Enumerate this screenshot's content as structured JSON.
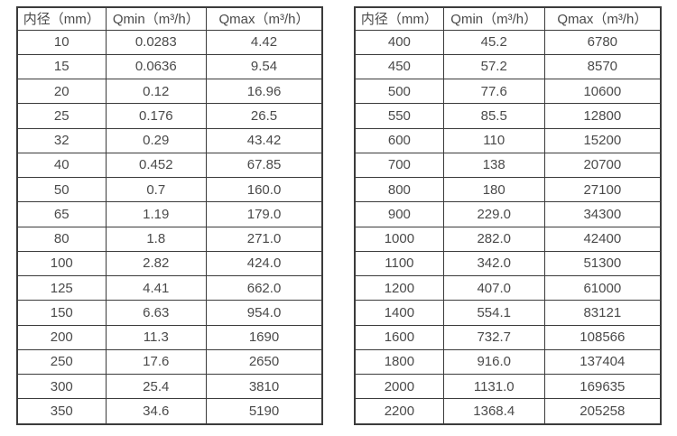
{
  "page": {
    "background": "#ffffff"
  },
  "colors": {
    "border": "#3b3b3b",
    "text": "#4a4a4a",
    "cell_background": "#ffffff"
  },
  "tables": [
    {
      "name": "flow-table-dn10-350",
      "headers": [
        "内径（mm）",
        "Qmin（m³/h）",
        "Qmax（m³/h）"
      ],
      "rows": [
        [
          "10",
          "0.0283",
          "4.42"
        ],
        [
          "15",
          "0.0636",
          "9.54"
        ],
        [
          "20",
          "0.12",
          "16.96"
        ],
        [
          "25",
          "0.176",
          "26.5"
        ],
        [
          "32",
          "0.29",
          "43.42"
        ],
        [
          "40",
          "0.452",
          "67.85"
        ],
        [
          "50",
          "0.7",
          "160.0"
        ],
        [
          "65",
          "1.19",
          "179.0"
        ],
        [
          "80",
          "1.8",
          "271.0"
        ],
        [
          "100",
          "2.82",
          "424.0"
        ],
        [
          "125",
          "4.41",
          "662.0"
        ],
        [
          "150",
          "6.63",
          "954.0"
        ],
        [
          "200",
          "11.3",
          "1690"
        ],
        [
          "250",
          "17.6",
          "2650"
        ],
        [
          "300",
          "25.4",
          "3810"
        ],
        [
          "350",
          "34.6",
          "5190"
        ]
      ]
    },
    {
      "name": "flow-table-dn400-2200",
      "headers": [
        "内径（mm）",
        "Qmin（m³/h）",
        "Qmax（m³/h）"
      ],
      "rows": [
        [
          "400",
          "45.2",
          "6780"
        ],
        [
          "450",
          "57.2",
          "8570"
        ],
        [
          "500",
          "77.6",
          "10600"
        ],
        [
          "550",
          "85.5",
          "12800"
        ],
        [
          "600",
          "110",
          "15200"
        ],
        [
          "700",
          "138",
          "20700"
        ],
        [
          "800",
          "180",
          "27100"
        ],
        [
          "900",
          "229.0",
          "34300"
        ],
        [
          "1000",
          "282.0",
          "42400"
        ],
        [
          "1100",
          "342.0",
          "51300"
        ],
        [
          "1200",
          "407.0",
          "61000"
        ],
        [
          "1400",
          "554.1",
          "83121"
        ],
        [
          "1600",
          "732.7",
          "108566"
        ],
        [
          "1800",
          "916.0",
          "137404"
        ],
        [
          "2000",
          "1131.0",
          "169635"
        ],
        [
          "2200",
          "1368.4",
          "205258"
        ]
      ]
    }
  ],
  "chart_data": {
    "type": "table",
    "title": "",
    "columns": [
      "内径（mm）",
      "Qmin（m³/h）",
      "Qmax（m³/h）"
    ],
    "note": "Two side-by-side tables of flow-meter inner diameter vs minimum and maximum flow rate"
  }
}
